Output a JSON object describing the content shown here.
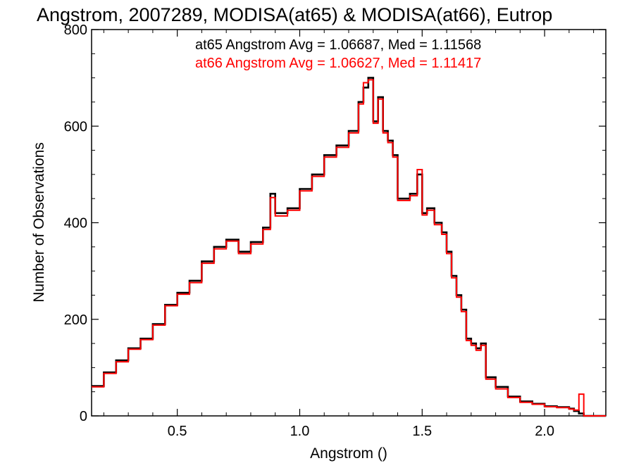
{
  "chart_data": {
    "type": "line",
    "title": "Angstrom, 2007289, MODISA(at65) & MODISA(at66), Eutrop",
    "xlabel": "Angstrom ()",
    "ylabel": "Number of Observations",
    "xlim": [
      0.15,
      2.25
    ],
    "ylim": [
      0,
      800
    ],
    "xticks": [
      0.5,
      1.0,
      1.5,
      2.0
    ],
    "xtick_labels": [
      "0.5",
      "1.0",
      "1.5",
      "2.0"
    ],
    "yticks": [
      0,
      200,
      400,
      600,
      800
    ],
    "ytick_labels": [
      "0",
      "200",
      "400",
      "600",
      "800"
    ],
    "grid": false,
    "annotations": [
      {
        "text": "at65 Angstrom Avg = 1.06687, Med = 1.11568",
        "color": "#000000"
      },
      {
        "text": "at66 Angstrom Avg = 1.06627, Med = 1.11417",
        "color": "#ff0000"
      }
    ],
    "series": [
      {
        "color": "#000000",
        "step": true,
        "x": [
          0.15,
          0.2,
          0.25,
          0.3,
          0.35,
          0.4,
          0.45,
          0.5,
          0.55,
          0.6,
          0.65,
          0.7,
          0.75,
          0.8,
          0.85,
          0.88,
          0.9,
          0.95,
          1.0,
          1.05,
          1.1,
          1.15,
          1.2,
          1.24,
          1.26,
          1.28,
          1.3,
          1.32,
          1.34,
          1.36,
          1.38,
          1.4,
          1.45,
          1.48,
          1.5,
          1.52,
          1.55,
          1.58,
          1.6,
          1.62,
          1.64,
          1.66,
          1.68,
          1.7,
          1.72,
          1.74,
          1.76,
          1.8,
          1.85,
          1.9,
          1.95,
          2.0,
          2.05,
          2.1,
          2.12,
          2.14,
          2.16,
          2.18,
          2.25
        ],
        "y": [
          62,
          90,
          115,
          140,
          160,
          190,
          230,
          255,
          280,
          320,
          350,
          365,
          340,
          360,
          390,
          460,
          420,
          430,
          470,
          500,
          540,
          560,
          590,
          650,
          680,
          700,
          610,
          660,
          590,
          570,
          540,
          450,
          460,
          500,
          420,
          430,
          400,
          380,
          340,
          290,
          250,
          220,
          160,
          150,
          140,
          150,
          80,
          60,
          40,
          30,
          25,
          20,
          18,
          15,
          10,
          5,
          0,
          0,
          0
        ]
      },
      {
        "color": "#ff0000",
        "step": true,
        "x": [
          0.15,
          0.2,
          0.25,
          0.3,
          0.35,
          0.4,
          0.45,
          0.5,
          0.55,
          0.6,
          0.65,
          0.7,
          0.75,
          0.8,
          0.85,
          0.88,
          0.9,
          0.95,
          1.0,
          1.05,
          1.1,
          1.15,
          1.2,
          1.24,
          1.26,
          1.28,
          1.3,
          1.32,
          1.34,
          1.36,
          1.38,
          1.4,
          1.45,
          1.48,
          1.5,
          1.52,
          1.55,
          1.58,
          1.6,
          1.62,
          1.64,
          1.66,
          1.68,
          1.7,
          1.72,
          1.74,
          1.76,
          1.8,
          1.85,
          1.9,
          1.95,
          2.0,
          2.05,
          2.1,
          2.12,
          2.14,
          2.16,
          2.18,
          2.25
        ],
        "y": [
          60,
          88,
          112,
          138,
          158,
          188,
          228,
          252,
          276,
          316,
          346,
          362,
          336,
          356,
          386,
          452,
          414,
          426,
          466,
          496,
          536,
          556,
          586,
          646,
          690,
          696,
          606,
          656,
          586,
          566,
          536,
          446,
          456,
          510,
          416,
          426,
          396,
          376,
          336,
          286,
          246,
          216,
          156,
          146,
          136,
          146,
          76,
          56,
          38,
          28,
          24,
          19,
          17,
          14,
          12,
          45,
          0,
          0,
          0
        ]
      }
    ]
  }
}
